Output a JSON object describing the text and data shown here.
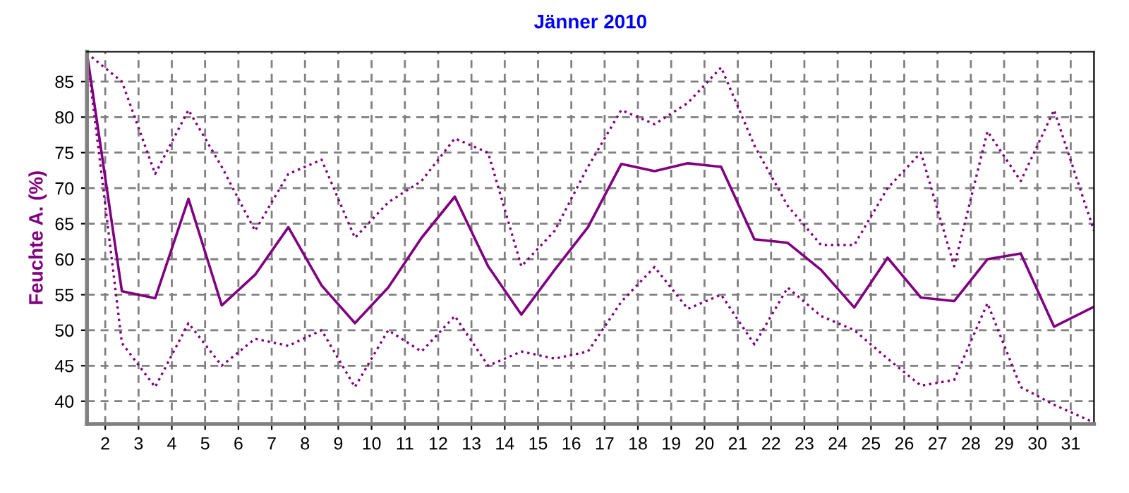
{
  "chart_data": {
    "type": "line",
    "title": "Jänner 2010",
    "ylabel": "Feuchte A. (%)",
    "x": [
      1.45,
      2.5,
      3.5,
      4.5,
      5.5,
      6.5,
      7.5,
      8.5,
      9.5,
      10.5,
      11.5,
      12.5,
      13.5,
      14.5,
      15.5,
      16.5,
      17.5,
      18.5,
      19.5,
      20.5,
      21.5,
      22.5,
      23.5,
      24.5,
      25.5,
      26.5,
      27.5,
      28.5,
      29.5,
      30.5,
      31.7
    ],
    "series": [
      {
        "color": "#800080",
        "line_style": "dotted",
        "values": [
          89,
          85,
          72,
          81,
          73,
          64,
          72,
          74,
          63,
          68,
          71,
          77,
          75,
          59,
          64,
          73,
          81,
          79,
          82,
          87,
          76,
          67.5,
          62,
          62,
          70,
          75,
          59,
          78,
          71,
          81,
          64
        ]
      },
      {
        "color": "#800080",
        "line_style": "solid",
        "values": [
          89,
          55.5,
          54.5,
          68.5,
          53.5,
          57.8,
          64.5,
          56.3,
          51,
          56,
          63,
          68.8,
          59,
          52.2,
          58.5,
          64.5,
          73.4,
          72.4,
          73.5,
          73,
          62.8,
          62.3,
          58.5,
          53.2,
          60.2,
          54.6,
          54.1,
          60,
          60.8,
          50.5,
          53.3
        ]
      },
      {
        "color": "#800080",
        "line_style": "dotted",
        "values": [
          89,
          48.2,
          42,
          51,
          45,
          48.8,
          47.8,
          50,
          42,
          50,
          47,
          52,
          45,
          47,
          46,
          47,
          54,
          58.9,
          53,
          55,
          48,
          56,
          52,
          50,
          46,
          42.2,
          43,
          53.8,
          42,
          39.5,
          37
        ]
      }
    ],
    "xlim": [
      1.45,
      31.7
    ],
    "ylim": [
      36.8,
      89.2
    ],
    "xticks": [
      2,
      3,
      4,
      5,
      6,
      7,
      8,
      9,
      10,
      11,
      12,
      13,
      14,
      15,
      16,
      17,
      18,
      19,
      20,
      21,
      22,
      23,
      24,
      25,
      26,
      27,
      28,
      29,
      30,
      31
    ],
    "yticks": [
      40,
      45,
      50,
      55,
      60,
      65,
      70,
      75,
      80,
      85
    ],
    "grid": true,
    "marker": "none"
  }
}
